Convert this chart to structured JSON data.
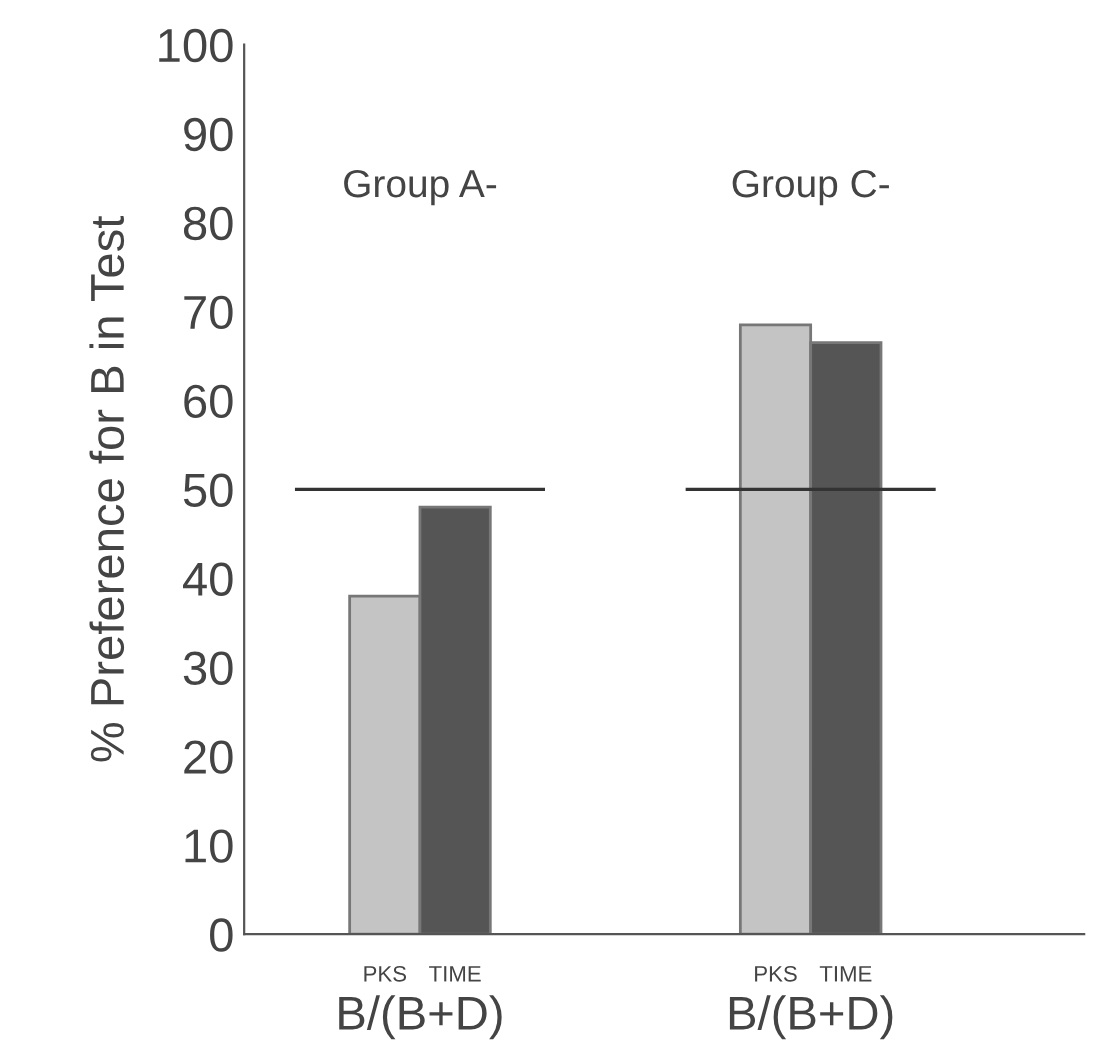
{
  "chart_data": {
    "type": "bar",
    "ylabel": "% Preference for B in Test",
    "categories": [
      "B/(B+D)",
      "B/(B+D)"
    ],
    "series": [
      {
        "name": "PKS",
        "color": "#c4c4c4",
        "values": [
          38,
          68.5
        ]
      },
      {
        "name": "TIME",
        "color": "#555555",
        "values": [
          48,
          66.5
        ]
      }
    ],
    "ylim": [
      0,
      100
    ],
    "yticks": [
      0,
      10,
      20,
      30,
      40,
      50,
      60,
      70,
      80,
      90,
      100
    ],
    "ref_lines": [
      {
        "axis": "y",
        "value": 50,
        "color": "#333333"
      }
    ],
    "annotations": [
      "Group A-",
      "Group C-"
    ],
    "grid": false,
    "legend": false
  }
}
